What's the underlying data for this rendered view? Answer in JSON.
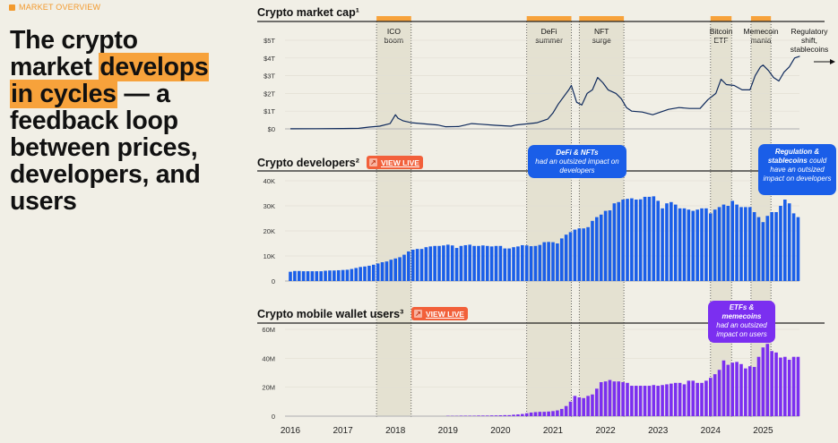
{
  "kicker": "MARKET OVERVIEW",
  "headline": {
    "part1": "The crypto market ",
    "highlight": "develops in cycles",
    "part2": " — a feedback loop between prices, developers, and users"
  },
  "colors": {
    "background": "#f1efe6",
    "band": "#e4e1d1",
    "highlight": "#f7a23b",
    "marketcap_line": "#0f2a5c",
    "developers": "#1a5ee8",
    "users": "#7b2ff0",
    "live_button": "#f2603a"
  },
  "live_button": {
    "label": "VIEW LIVE",
    "icon": "arrow-up-right-icon"
  },
  "bands": [
    {
      "lines": [
        "ICO",
        "boom"
      ],
      "start": 2017.64,
      "end": 2018.3
    },
    {
      "lines": [
        "DeFi",
        "summer"
      ],
      "start": 2020.5,
      "end": 2021.35
    },
    {
      "lines": [
        "NFT",
        "surge"
      ],
      "start": 2021.5,
      "end": 2022.35
    },
    {
      "lines": [
        "Bitcoin",
        "ETF"
      ],
      "start": 2024.0,
      "end": 2024.4
    },
    {
      "lines": [
        "Memecoin",
        "mania"
      ],
      "start": 2024.77,
      "end": 2025.15
    }
  ],
  "future_label": [
    "Regulatory",
    "shift,",
    "stablecoins"
  ],
  "callouts": {
    "developers_defi": {
      "bold": "DeFi & NFTs",
      "text": "had an outsized impact on developers"
    },
    "developers_reg": {
      "bold": "Regulation & stablecoins",
      "text": "could have an outsized impact on developers"
    },
    "users": {
      "bold": "ETFs & memecoins",
      "text": "had an outsized impact on users"
    }
  },
  "chart_data": [
    {
      "type": "line",
      "title": "Crypto market cap¹",
      "ylabel": "",
      "ylim": [
        0,
        5
      ],
      "yticks": [
        "$0",
        "$1T",
        "$2T",
        "$3T",
        "$4T",
        "$5T"
      ],
      "xlim": [
        2016,
        2025.75
      ],
      "x": [
        2016.0,
        2016.5,
        2017.0,
        2017.3,
        2017.5,
        2017.7,
        2017.9,
        2018.0,
        2018.05,
        2018.15,
        2018.3,
        2018.5,
        2018.8,
        2018.95,
        2019.2,
        2019.45,
        2019.6,
        2019.9,
        2020.2,
        2020.3,
        2020.55,
        2020.7,
        2020.9,
        2021.0,
        2021.1,
        2021.3,
        2021.35,
        2021.45,
        2021.55,
        2021.65,
        2021.75,
        2021.85,
        2021.95,
        2022.05,
        2022.2,
        2022.3,
        2022.4,
        2022.5,
        2022.7,
        2022.9,
        2023.05,
        2023.2,
        2023.4,
        2023.6,
        2023.8,
        2023.95,
        2024.1,
        2024.2,
        2024.3,
        2024.45,
        2024.6,
        2024.75,
        2024.85,
        2024.95,
        2025.0,
        2025.1,
        2025.2,
        2025.3,
        2025.4,
        2025.5,
        2025.6,
        2025.7
      ],
      "values": [
        0.007,
        0.012,
        0.018,
        0.03,
        0.1,
        0.15,
        0.3,
        0.8,
        0.6,
        0.45,
        0.35,
        0.3,
        0.22,
        0.12,
        0.13,
        0.3,
        0.27,
        0.2,
        0.15,
        0.22,
        0.3,
        0.35,
        0.55,
        0.9,
        1.4,
        2.2,
        2.45,
        1.5,
        1.35,
        2.0,
        2.2,
        2.9,
        2.6,
        2.2,
        2.0,
        1.7,
        1.2,
        1.0,
        0.95,
        0.8,
        0.95,
        1.1,
        1.2,
        1.15,
        1.15,
        1.65,
        2.0,
        2.8,
        2.5,
        2.45,
        2.2,
        2.2,
        3.0,
        3.5,
        3.6,
        3.3,
        2.9,
        2.7,
        3.2,
        3.5,
        4.0,
        4.1
      ]
    },
    {
      "type": "bar",
      "title": "Crypto developers²",
      "ylim": [
        0,
        40
      ],
      "yticks": [
        "0",
        "10K",
        "20K",
        "30K",
        "40K"
      ],
      "start": "2016-01",
      "frequency": "monthly",
      "unit": "thousands",
      "values": [
        3.7,
        4.0,
        4.0,
        3.9,
        3.9,
        3.9,
        3.9,
        3.9,
        4.1,
        4.2,
        4.2,
        4.3,
        4.4,
        4.5,
        4.8,
        5.2,
        5.6,
        5.8,
        6.1,
        6.5,
        7.0,
        7.5,
        7.8,
        8.5,
        9.0,
        9.5,
        10.5,
        11.8,
        12.5,
        12.8,
        12.8,
        13.5,
        13.8,
        14.0,
        14.0,
        14.2,
        14.5,
        14.2,
        13.2,
        14.0,
        14.3,
        14.5,
        14.0,
        14.0,
        14.2,
        14.0,
        13.8,
        14.0,
        14.0,
        13.0,
        13.0,
        13.5,
        13.8,
        14.3,
        14.2,
        13.9,
        14.0,
        14.4,
        15.5,
        15.6,
        15.5,
        15.0,
        17.0,
        18.5,
        19.5,
        20.5,
        21.0,
        21.0,
        21.5,
        24.0,
        25.5,
        26.5,
        28.0,
        28.2,
        31.0,
        31.5,
        32.5,
        32.8,
        33.0,
        32.5,
        32.6,
        33.6,
        33.6,
        33.8,
        32.0,
        29.0,
        31.0,
        31.5,
        30.5,
        29.0,
        29.0,
        28.5,
        28.0,
        28.5,
        29.0,
        29.0,
        27.0,
        28.5,
        29.5,
        30.5,
        30.0,
        32.0,
        30.5,
        29.5,
        29.5,
        29.5,
        27.5,
        25.5,
        23.5,
        26.0,
        27.5,
        27.5,
        30.0,
        32.5,
        31.0,
        27.0,
        25.5
      ]
    },
    {
      "type": "bar",
      "title": "Crypto mobile wallet users³",
      "ylim": [
        0,
        60
      ],
      "yticks": [
        "0",
        "20M",
        "40M",
        "60M"
      ],
      "start": "2019-01",
      "frequency": "monthly",
      "unit": "millions",
      "xticks": [
        "2016",
        "2017",
        "2018",
        "2019",
        "2020",
        "2021",
        "2022",
        "2023",
        "2024",
        "2025"
      ],
      "values": [
        0.2,
        0.2,
        0.2,
        0.3,
        0.3,
        0.3,
        0.3,
        0.4,
        0.4,
        0.4,
        0.5,
        0.5,
        0.6,
        0.7,
        0.7,
        1.0,
        1.2,
        1.5,
        2.0,
        2.5,
        2.8,
        3.0,
        3.0,
        3.2,
        3.5,
        4.0,
        5.0,
        7.0,
        10.0,
        14.0,
        13.0,
        12.5,
        14.0,
        15.0,
        19.0,
        23.5,
        24.0,
        25.0,
        24.0,
        24.0,
        23.5,
        23.0,
        21.0,
        21.0,
        21.0,
        21.0,
        21.0,
        21.5,
        21.0,
        21.5,
        22.0,
        22.5,
        23.0,
        23.0,
        22.0,
        24.5,
        24.5,
        23.0,
        23.0,
        24.5,
        26.5,
        29.0,
        32.0,
        38.5,
        35.5,
        37.0,
        37.5,
        36.0,
        33.0,
        34.5,
        34.0,
        41.0,
        47.5,
        50.0,
        45.0,
        44.0,
        40.5,
        41.0,
        39.0,
        41.0,
        41.0
      ]
    }
  ]
}
